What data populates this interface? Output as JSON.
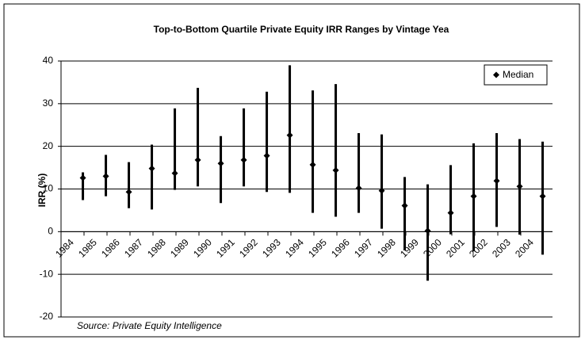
{
  "chart_data": {
    "type": "range",
    "title": "Top-to-Bottom Quartile Private Equity IRR Ranges by Vintage Yea",
    "y_label": "IRR (%)",
    "source": "Source: Private Equity Intelligence",
    "categories": [
      "1984",
      "1985",
      "1986",
      "1987",
      "1988",
      "1989",
      "1990",
      "1991",
      "1992",
      "1993",
      "1994",
      "1995",
      "1996",
      "1997",
      "1998",
      "1999",
      "2000",
      "2001",
      "2002",
      "2003",
      "2004"
    ],
    "low": [
      7.4,
      8.3,
      5.5,
      5.2,
      9.8,
      10.6,
      6.7,
      10.6,
      9.3,
      9.1,
      4.4,
      3.5,
      4.4,
      0.7,
      -4.4,
      -11.5,
      -0.6,
      -4.6,
      1.1,
      -0.7,
      -5.4
    ],
    "high": [
      13.9,
      18,
      16.3,
      20.4,
      28.9,
      33.7,
      22.4,
      28.9,
      32.8,
      39,
      33.1,
      34.6,
      23.1,
      22.8,
      12.8,
      11.1,
      15.6,
      20.7,
      23.1,
      21.7,
      21.1
    ],
    "series": [
      {
        "name": "Median",
        "color": "#000000",
        "values": [
          12.6,
          13,
          9.3,
          14.8,
          13.7,
          16.8,
          16,
          16.8,
          17.8,
          22.6,
          15.7,
          14.4,
          10.2,
          9.6,
          6.1,
          0.2,
          4.4,
          8.3,
          11.9,
          10.6,
          8.3
        ]
      }
    ],
    "ylim": [
      -20,
      40
    ],
    "yticks": [
      -20,
      -10,
      0,
      10,
      20,
      30,
      40
    ],
    "grid": true,
    "legend": "top-right"
  }
}
